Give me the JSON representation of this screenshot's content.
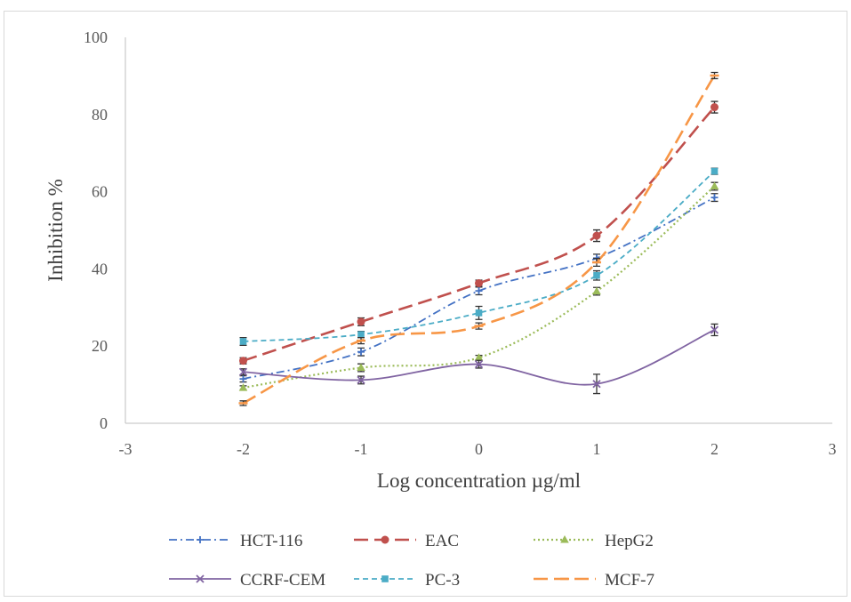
{
  "chart_data": {
    "type": "line",
    "xlabel": "Log concentration µg/ml",
    "ylabel": "Inhibition %",
    "xlim": [
      -3,
      3
    ],
    "ylim": [
      0,
      100
    ],
    "xticks": [
      "-3",
      "-2",
      "-1",
      "0",
      "1",
      "2",
      "3"
    ],
    "yticks": [
      "0",
      "20",
      "40",
      "60",
      "80",
      "100"
    ],
    "x": [
      -2,
      -1,
      0,
      1,
      2
    ],
    "legend_position": "bottom",
    "series": [
      {
        "name": "HCT-116",
        "values": [
          11.5,
          18.5,
          34.3,
          42.8,
          58.5
        ],
        "errors": [
          0.8,
          1.0,
          1.0,
          1.0,
          1.0
        ],
        "color": "#4472c4",
        "marker": "plus",
        "dash": "dashdot"
      },
      {
        "name": "EAC",
        "values": [
          16.2,
          26.3,
          36.3,
          48.6,
          81.9
        ],
        "errors": [
          0.8,
          1.0,
          0.8,
          1.5,
          1.5
        ],
        "color": "#c0504d",
        "marker": "circle",
        "dash": "longdash"
      },
      {
        "name": "HepG2",
        "values": [
          9.2,
          14.4,
          17.0,
          34.2,
          61.4
        ],
        "errors": [
          0.5,
          1.0,
          0.6,
          1.0,
          1.0
        ],
        "color": "#9bbb59",
        "marker": "triangle",
        "dash": "dot"
      },
      {
        "name": "CCRF-CEM",
        "values": [
          13.3,
          11.2,
          15.3,
          10.2,
          24.2
        ],
        "errors": [
          0.8,
          1.0,
          1.0,
          2.5,
          1.5
        ],
        "color": "#8064a2",
        "marker": "x",
        "dash": "solid"
      },
      {
        "name": "PC-3",
        "values": [
          21.2,
          23.0,
          28.6,
          38.3,
          65.3
        ],
        "errors": [
          1.0,
          0.8,
          1.7,
          1.2,
          0.8
        ],
        "color": "#4bacc6",
        "marker": "square",
        "dash": "dash"
      },
      {
        "name": "MCF-7",
        "values": [
          5.2,
          21.4,
          25.2,
          41.7,
          90.1
        ],
        "errors": [
          0.6,
          0.8,
          0.8,
          1.0,
          0.8
        ],
        "color": "#f79646",
        "marker": "dash",
        "dash": "longdash"
      }
    ]
  }
}
